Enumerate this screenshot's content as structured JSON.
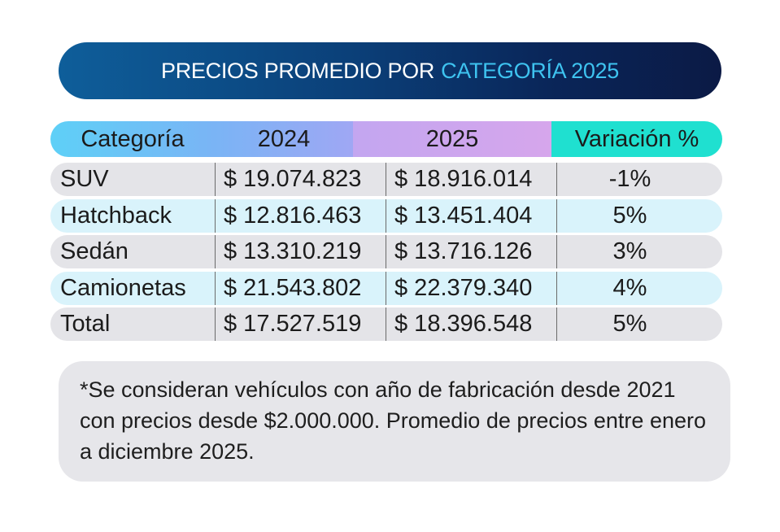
{
  "title": {
    "part1": "PRECIOS PROMEDIO POR",
    "part2": "CATEGORÍA 2025"
  },
  "table": {
    "headers": [
      "Categoría",
      "2024",
      "2025",
      "Variación %"
    ],
    "rows": [
      {
        "category": "SUV",
        "y2024": "$ 19.074.823",
        "y2025": "$ 18.916.014",
        "variation": "-1%"
      },
      {
        "category": "Hatchback",
        "y2024": "$ 12.816.463",
        "y2025": "$ 13.451.404",
        "variation": "5%"
      },
      {
        "category": "Sedán",
        "y2024": "$ 13.310.219",
        "y2025": "$ 13.716.126",
        "variation": "3%"
      },
      {
        "category": "Camionetas",
        "y2024": "$ 21.543.802",
        "y2025": "$ 22.379.340",
        "variation": "4%"
      },
      {
        "category": "Total",
        "y2024": "$ 17.527.519",
        "y2025": "$ 18.396.548",
        "variation": "5%"
      }
    ]
  },
  "note": "*Se consideran vehículos con año de fabricación desde 2021 con precios desde $2.000.000. Promedio de precios entre enero a diciembre 2025.",
  "colors": {
    "banner": "#0b3f78",
    "accent": "#3ec3f0",
    "variation_header": "#1fe0d0"
  }
}
